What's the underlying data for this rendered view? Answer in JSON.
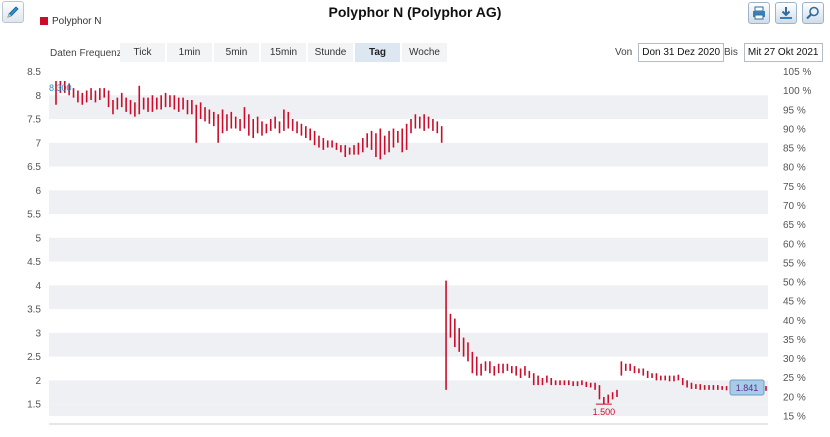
{
  "header": {
    "title": "Polyphor N (Polyphor AG)",
    "legend_label": "Polyphor N",
    "legend_color": "#cc0c2a"
  },
  "toolbar": {
    "edit_icon": "pencil-icon",
    "buttons": [
      "print-icon",
      "download-icon",
      "zoom-icon"
    ]
  },
  "frequency": {
    "label": "Daten Frequenz",
    "tabs": [
      "Tick",
      "1min",
      "5min",
      "15min",
      "Stunde",
      "Tag",
      "Woche"
    ],
    "active": "Tag"
  },
  "range": {
    "from_label": "Von",
    "from_value": "Don 31 Dez 2020",
    "to_label": "Bis",
    "to_value": "Mit 27 Okt 2021"
  },
  "chart_data": {
    "type": "ohlc",
    "series": [
      {
        "name": "Polyphor N",
        "color": "#cc0c2a"
      }
    ],
    "y_left": {
      "min": 1.25,
      "max": 8.5,
      "ticks": [
        "1.5",
        "2",
        "2.5",
        "3",
        "3.5",
        "4",
        "4.5",
        "5",
        "5.5",
        "6",
        "6.5",
        "7",
        "7.5",
        "8",
        "8.5"
      ]
    },
    "y_right": {
      "ticks": [
        "15 %",
        "20 %",
        "25 %",
        "30 %",
        "35 %",
        "40 %",
        "45 %",
        "50 %",
        "55 %",
        "60 %",
        "65 %",
        "70 %",
        "75 %",
        "80 %",
        "85 %",
        "90 %",
        "95 %",
        "100 %",
        "105 %"
      ]
    },
    "annotations": {
      "high": "8.300",
      "low": "1.500",
      "last": "1.841"
    },
    "bars": [
      [
        8.15,
        8.3,
        7.8,
        8.1
      ],
      [
        8.2,
        8.3,
        8.05,
        8.2
      ],
      [
        8.25,
        8.3,
        8.05,
        8.2
      ],
      [
        8.2,
        8.25,
        8.0,
        8.1
      ],
      [
        8.1,
        8.15,
        7.95,
        8.0
      ],
      [
        8.05,
        8.1,
        7.85,
        7.95
      ],
      [
        7.95,
        8.05,
        7.8,
        7.95
      ],
      [
        8.0,
        8.1,
        7.85,
        8.05
      ],
      [
        8.05,
        8.15,
        7.9,
        8.0
      ],
      [
        8.0,
        8.1,
        7.85,
        7.95
      ],
      [
        8.0,
        8.15,
        7.9,
        8.1
      ],
      [
        8.1,
        8.15,
        7.95,
        8.0
      ],
      [
        8.0,
        8.1,
        7.75,
        7.85
      ],
      [
        7.85,
        7.9,
        7.6,
        7.7
      ],
      [
        7.8,
        7.95,
        7.7,
        7.85
      ],
      [
        7.9,
        8.05,
        7.75,
        7.9
      ],
      [
        7.85,
        7.95,
        7.65,
        7.75
      ],
      [
        7.8,
        7.9,
        7.6,
        7.7
      ],
      [
        7.75,
        7.85,
        7.55,
        7.65
      ],
      [
        7.7,
        8.2,
        7.6,
        7.9
      ],
      [
        7.9,
        7.95,
        7.7,
        7.8
      ],
      [
        7.85,
        7.95,
        7.65,
        7.75
      ],
      [
        7.8,
        8.0,
        7.65,
        7.85
      ],
      [
        7.9,
        7.95,
        7.7,
        7.8
      ],
      [
        7.85,
        8.0,
        7.7,
        7.9
      ],
      [
        7.9,
        8.05,
        7.75,
        7.95
      ],
      [
        7.95,
        8.0,
        7.75,
        7.85
      ],
      [
        7.9,
        8.0,
        7.7,
        7.8
      ],
      [
        7.85,
        7.95,
        7.65,
        7.75
      ],
      [
        7.8,
        7.95,
        7.7,
        7.85
      ],
      [
        7.85,
        7.9,
        7.6,
        7.7
      ],
      [
        7.75,
        7.9,
        7.6,
        7.8
      ],
      [
        7.75,
        7.8,
        7.0,
        7.5
      ],
      [
        7.55,
        7.85,
        7.5,
        7.7
      ],
      [
        7.7,
        7.75,
        7.45,
        7.55
      ],
      [
        7.55,
        7.7,
        7.4,
        7.6
      ],
      [
        7.6,
        7.65,
        7.35,
        7.45
      ],
      [
        7.5,
        7.6,
        7.0,
        7.3
      ],
      [
        7.3,
        7.7,
        7.2,
        7.5
      ],
      [
        7.55,
        7.6,
        7.25,
        7.4
      ],
      [
        7.45,
        7.65,
        7.3,
        7.55
      ],
      [
        7.5,
        7.55,
        7.3,
        7.4
      ],
      [
        7.45,
        7.5,
        7.25,
        7.35
      ],
      [
        7.4,
        7.75,
        7.3,
        7.5
      ],
      [
        7.5,
        7.6,
        7.15,
        7.3
      ],
      [
        7.3,
        7.5,
        7.1,
        7.35
      ],
      [
        7.4,
        7.55,
        7.2,
        7.3
      ],
      [
        7.3,
        7.45,
        7.15,
        7.25
      ],
      [
        7.3,
        7.4,
        7.2,
        7.3
      ],
      [
        7.3,
        7.5,
        7.25,
        7.4
      ],
      [
        7.45,
        7.55,
        7.3,
        7.35
      ],
      [
        7.35,
        7.45,
        7.2,
        7.3
      ],
      [
        7.3,
        7.7,
        7.25,
        7.5
      ],
      [
        7.5,
        7.65,
        7.3,
        7.4
      ],
      [
        7.4,
        7.5,
        7.25,
        7.3
      ],
      [
        7.35,
        7.45,
        7.2,
        7.3
      ],
      [
        7.3,
        7.4,
        7.15,
        7.2
      ],
      [
        7.25,
        7.35,
        7.1,
        7.2
      ],
      [
        7.2,
        7.3,
        7.05,
        7.1
      ],
      [
        7.15,
        7.25,
        6.95,
        7.05
      ],
      [
        7.05,
        7.15,
        6.9,
        7.0
      ],
      [
        7.0,
        7.1,
        6.85,
        6.95
      ],
      [
        6.95,
        7.05,
        6.9,
        7.0
      ],
      [
        7.0,
        7.05,
        6.9,
        6.95
      ],
      [
        6.95,
        7.0,
        6.85,
        6.9
      ],
      [
        6.9,
        6.95,
        6.8,
        6.85
      ],
      [
        6.85,
        6.95,
        6.7,
        6.8
      ],
      [
        6.8,
        6.9,
        6.75,
        6.85
      ],
      [
        6.85,
        6.95,
        6.75,
        6.8
      ],
      [
        6.8,
        7.0,
        6.75,
        6.9
      ],
      [
        6.9,
        7.1,
        6.8,
        7.0
      ],
      [
        7.0,
        7.2,
        6.9,
        7.1
      ],
      [
        7.1,
        7.25,
        6.85,
        6.95
      ],
      [
        6.95,
        7.2,
        6.7,
        6.8
      ],
      [
        6.8,
        7.3,
        6.65,
        7.0
      ],
      [
        7.0,
        7.15,
        6.75,
        6.9
      ],
      [
        6.9,
        7.25,
        6.8,
        7.1
      ],
      [
        7.1,
        7.3,
        6.9,
        7.2
      ],
      [
        7.2,
        7.25,
        7.0,
        7.1
      ],
      [
        7.1,
        7.3,
        6.8,
        6.9
      ],
      [
        6.9,
        7.4,
        6.85,
        7.3
      ],
      [
        7.3,
        7.5,
        7.2,
        7.4
      ],
      [
        7.4,
        7.6,
        7.3,
        7.5
      ],
      [
        7.5,
        7.55,
        7.3,
        7.4
      ],
      [
        7.4,
        7.6,
        7.25,
        7.45
      ],
      [
        7.45,
        7.55,
        7.3,
        7.4
      ],
      [
        7.4,
        7.5,
        7.25,
        7.35
      ],
      [
        7.35,
        7.45,
        7.2,
        7.3
      ],
      [
        7.3,
        7.35,
        7.0,
        7.1
      ],
      [
        1.8,
        4.1,
        1.8,
        3.2
      ],
      [
        3.4,
        3.4,
        2.9,
        3.2
      ],
      [
        3.3,
        3.3,
        2.7,
        3.0
      ],
      [
        2.9,
        3.1,
        2.6,
        2.8
      ],
      [
        2.7,
        2.9,
        2.5,
        2.6
      ],
      [
        2.6,
        2.8,
        2.4,
        2.5
      ],
      [
        2.5,
        2.6,
        2.15,
        2.3
      ],
      [
        2.3,
        2.5,
        2.1,
        2.2
      ],
      [
        2.2,
        2.35,
        2.1,
        2.25
      ],
      [
        2.25,
        2.4,
        2.2,
        2.3
      ],
      [
        2.3,
        2.4,
        2.15,
        2.25
      ],
      [
        2.25,
        2.3,
        2.1,
        2.2
      ],
      [
        2.2,
        2.35,
        2.15,
        2.25
      ],
      [
        2.25,
        2.35,
        2.15,
        2.3
      ],
      [
        2.3,
        2.35,
        2.2,
        2.25
      ],
      [
        2.25,
        2.3,
        2.15,
        2.2
      ],
      [
        2.2,
        2.3,
        2.1,
        2.15
      ],
      [
        2.15,
        2.25,
        2.05,
        2.2
      ],
      [
        2.2,
        2.3,
        2.1,
        2.15
      ],
      [
        2.15,
        2.2,
        2.05,
        2.1
      ],
      [
        2.05,
        2.15,
        1.9,
        2.0
      ],
      [
        2.0,
        2.1,
        1.9,
        1.95
      ],
      [
        1.95,
        2.05,
        1.9,
        2.0
      ],
      [
        2.0,
        2.1,
        1.95,
        2.05
      ],
      [
        2.0,
        2.05,
        1.9,
        1.95
      ],
      [
        1.95,
        2.0,
        1.9,
        1.95
      ],
      [
        1.95,
        2.0,
        1.9,
        1.92
      ],
      [
        1.92,
        2.0,
        1.9,
        1.95
      ],
      [
        1.95,
        2.0,
        1.9,
        1.93
      ],
      [
        1.93,
        1.98,
        1.88,
        1.92
      ],
      [
        1.92,
        1.98,
        1.88,
        1.95
      ],
      [
        1.95,
        2.0,
        1.9,
        1.93
      ],
      [
        1.93,
        1.97,
        1.86,
        1.9
      ],
      [
        1.9,
        1.95,
        1.85,
        1.9
      ],
      [
        1.9,
        1.95,
        1.8,
        1.85
      ],
      [
        1.85,
        1.9,
        1.6,
        1.7
      ],
      [
        1.6,
        1.65,
        1.5,
        1.55
      ],
      [
        1.55,
        1.7,
        1.52,
        1.65
      ],
      [
        1.65,
        1.75,
        1.6,
        1.7
      ],
      [
        1.7,
        1.8,
        1.65,
        1.75
      ],
      [
        2.2,
        2.4,
        2.1,
        2.3
      ],
      [
        2.25,
        2.35,
        2.2,
        2.3
      ],
      [
        2.3,
        2.35,
        2.2,
        2.25
      ],
      [
        2.25,
        2.3,
        2.15,
        2.2
      ],
      [
        2.2,
        2.25,
        2.15,
        2.2
      ],
      [
        2.2,
        2.25,
        2.1,
        2.15
      ],
      [
        2.15,
        2.2,
        2.05,
        2.1
      ],
      [
        2.1,
        2.15,
        2.05,
        2.1
      ],
      [
        2.1,
        2.15,
        2.0,
        2.05
      ],
      [
        2.05,
        2.1,
        2.0,
        2.05
      ],
      [
        2.05,
        2.1,
        2.0,
        2.05
      ],
      [
        2.05,
        2.1,
        1.98,
        2.02
      ],
      [
        2.02,
        2.1,
        1.98,
        2.05
      ],
      [
        2.05,
        2.12,
        2.0,
        2.05
      ],
      [
        2.0,
        2.05,
        1.9,
        1.95
      ],
      [
        1.95,
        2.0,
        1.85,
        1.9
      ],
      [
        1.9,
        1.95,
        1.82,
        1.86
      ],
      [
        1.86,
        1.92,
        1.82,
        1.88
      ],
      [
        1.88,
        1.92,
        1.8,
        1.84
      ],
      [
        1.84,
        1.9,
        1.8,
        1.86
      ],
      [
        1.86,
        1.9,
        1.8,
        1.84
      ],
      [
        1.84,
        1.9,
        1.8,
        1.85
      ],
      [
        1.85,
        1.9,
        1.8,
        1.84
      ],
      [
        1.84,
        1.88,
        1.8,
        1.83
      ],
      [
        1.83,
        1.88,
        1.79,
        1.84
      ],
      [
        1.84,
        1.88,
        1.8,
        1.85
      ],
      [
        1.85,
        1.88,
        1.8,
        1.84
      ],
      [
        1.84,
        1.88,
        1.8,
        1.83
      ],
      [
        1.83,
        1.86,
        1.79,
        1.84
      ],
      [
        1.84,
        1.9,
        1.8,
        1.85
      ],
      [
        1.85,
        1.92,
        1.78,
        1.84
      ],
      [
        1.84,
        1.9,
        1.8,
        1.86
      ],
      [
        1.86,
        1.9,
        1.8,
        1.84
      ],
      [
        1.84,
        1.88,
        1.78,
        1.84
      ]
    ]
  }
}
